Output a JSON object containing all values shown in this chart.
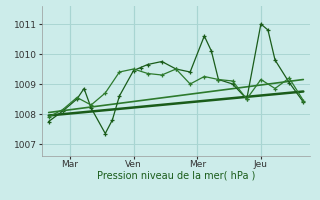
{
  "background_color": "#ccecea",
  "grid_color": "#aad6d3",
  "line_dark": "#1a5c1a",
  "line_mid": "#2d7a2d",
  "ylabel": "Pression niveau de la mer( hPa )",
  "yticks": [
    1007,
    1008,
    1009,
    1010,
    1011
  ],
  "ylim": [
    1006.6,
    1011.6
  ],
  "xlim": [
    -1,
    37
  ],
  "xtick_positions": [
    3,
    12,
    21,
    30
  ],
  "xtick_labels": [
    "Mar",
    "Ven",
    "Mer",
    "Jeu"
  ],
  "vlines": [
    3,
    12,
    21,
    30
  ],
  "series1_x": [
    0,
    2,
    4,
    5,
    6,
    8,
    9,
    10,
    12,
    13,
    14,
    16,
    18,
    20,
    22,
    23,
    24,
    26,
    28,
    30,
    31,
    32,
    34,
    36
  ],
  "series1_y": [
    1007.75,
    1008.1,
    1008.5,
    1008.85,
    1008.2,
    1007.35,
    1007.8,
    1008.6,
    1009.45,
    1009.55,
    1009.65,
    1009.75,
    1009.5,
    1009.4,
    1010.6,
    1010.1,
    1009.15,
    1009.0,
    1008.5,
    1011.0,
    1010.8,
    1009.8,
    1009.05,
    1008.4
  ],
  "series2_x": [
    0,
    2,
    4,
    6,
    8,
    10,
    12,
    14,
    16,
    18,
    20,
    22,
    24,
    26,
    28,
    30,
    32,
    34,
    36
  ],
  "series2_y": [
    1007.9,
    1008.15,
    1008.55,
    1008.3,
    1008.7,
    1009.4,
    1009.5,
    1009.35,
    1009.3,
    1009.5,
    1009.0,
    1009.25,
    1009.15,
    1009.1,
    1008.5,
    1009.15,
    1008.85,
    1009.2,
    1008.45
  ],
  "trend1_x": [
    0,
    36
  ],
  "trend1_y": [
    1007.95,
    1008.75
  ],
  "trend2_x": [
    0,
    36
  ],
  "trend2_y": [
    1008.05,
    1009.15
  ]
}
